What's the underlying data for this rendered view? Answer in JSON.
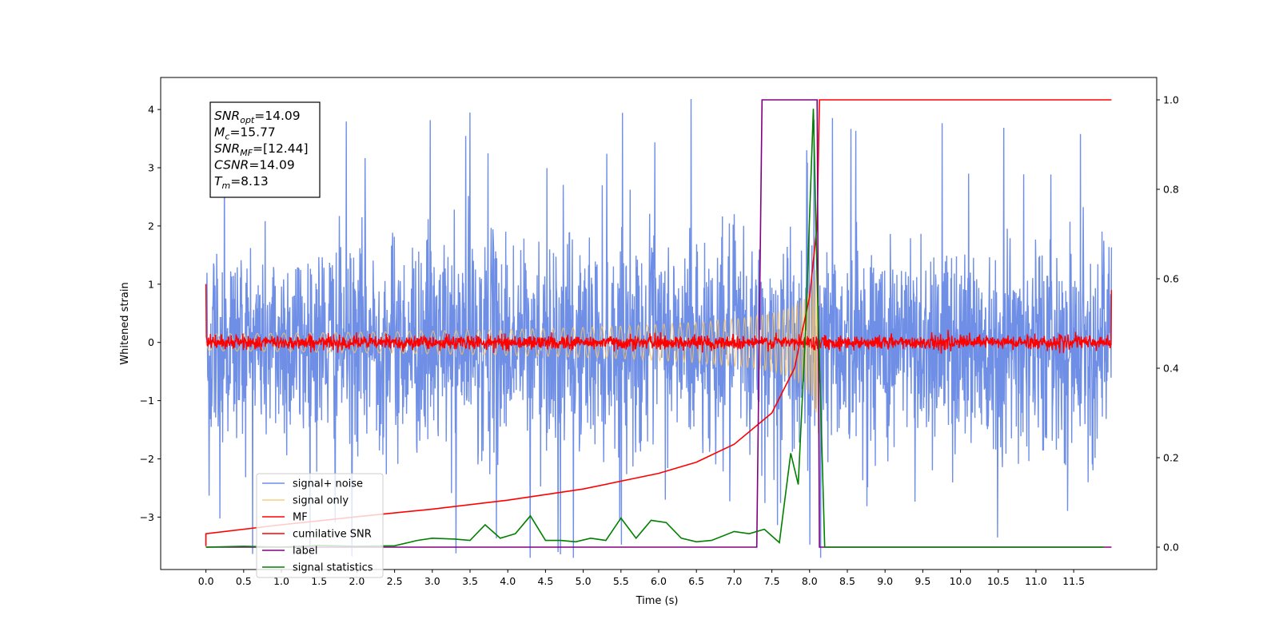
{
  "chart_data": {
    "type": "line",
    "xlabel": "Time (s)",
    "ylabel": "Whitened strain",
    "xlim": [
      -0.6,
      12.6
    ],
    "ylim_left": [
      -3.9,
      4.55
    ],
    "ylim_right": [
      -0.05,
      1.05
    ],
    "x_ticks": [
      "0.0",
      "0.5",
      "1.0",
      "1.5",
      "2.0",
      "2.5",
      "3.0",
      "3.5",
      "4.0",
      "4.5",
      "5.0",
      "5.5",
      "6.0",
      "6.5",
      "7.0",
      "7.5",
      "8.0",
      "8.5",
      "9.0",
      "9.5",
      "10.0",
      "10.5",
      "11.0",
      "11.5"
    ],
    "y_ticks_left": [
      "4",
      "3",
      "2",
      "1",
      "0",
      "−1",
      "−2",
      "−3"
    ],
    "y_ticks_right": [
      "1.0",
      "0.8",
      "0.6",
      "0.4",
      "0.2",
      "0.0"
    ],
    "info_box": [
      {
        "base": "SNR",
        "sub": "opt",
        "rest": "=14.09"
      },
      {
        "base": "M",
        "sub": "c",
        "rest": "=15.77"
      },
      {
        "base": "SNR",
        "sub": "MF",
        "rest": "=[12.44]"
      },
      {
        "base": "CSNR",
        "sub": "",
        "rest": "=14.09"
      },
      {
        "base": "T",
        "sub": "m",
        "rest": "=8.13"
      }
    ],
    "series": [
      {
        "name": "signal+ noise",
        "color": "#6f8ee6",
        "axis": "left",
        "x_range": [
          0,
          12
        ],
        "amplitude_std": 0.9,
        "peak_min": -3.6,
        "peak_max": 4.18
      },
      {
        "name": "signal only",
        "color": "#f5c46b",
        "axis": "left",
        "x_range": [
          0,
          8.13
        ],
        "envelope_end": 3.3
      },
      {
        "name": "MF",
        "color": "#ff0000",
        "axis": "left",
        "x_range": [
          0,
          12
        ],
        "amplitude_std": 0.06,
        "start": 1.0,
        "end": 0.9
      },
      {
        "name": "cumilative SNR",
        "color": "#ff0000",
        "axis": "right",
        "x": [
          0.0,
          1.0,
          2.0,
          3.0,
          4.0,
          5.0,
          6.0,
          6.5,
          7.0,
          7.5,
          7.8,
          8.0,
          8.1,
          8.13,
          9.0,
          10.0,
          11.0,
          12.0
        ],
        "y": [
          0.03,
          0.05,
          0.068,
          0.085,
          0.105,
          0.13,
          0.165,
          0.19,
          0.23,
          0.3,
          0.4,
          0.56,
          0.72,
          1.0,
          1.0,
          1.0,
          1.0,
          1.0
        ]
      },
      {
        "name": "label",
        "color": "#800080",
        "axis": "right",
        "x": [
          0.0,
          7.3,
          7.37,
          8.1,
          8.13,
          12.0
        ],
        "y": [
          0.0,
          0.0,
          1.0,
          1.0,
          0.0,
          0.0
        ]
      },
      {
        "name": "signal statistics",
        "color": "#008000",
        "axis": "right",
        "x": [
          0.0,
          0.5,
          1.0,
          1.5,
          2.0,
          2.5,
          2.8,
          3.0,
          3.3,
          3.5,
          3.7,
          3.9,
          4.1,
          4.3,
          4.5,
          4.7,
          4.9,
          5.1,
          5.3,
          5.5,
          5.7,
          5.9,
          6.1,
          6.3,
          6.5,
          6.7,
          7.0,
          7.2,
          7.4,
          7.6,
          7.75,
          7.85,
          7.95,
          8.05,
          8.1,
          8.2,
          8.5,
          9.0,
          10.0,
          11.0,
          11.9
        ],
        "y": [
          0.0,
          0.002,
          0.0,
          0.004,
          0.002,
          0.003,
          0.015,
          0.02,
          0.018,
          0.015,
          0.05,
          0.02,
          0.03,
          0.07,
          0.015,
          0.015,
          0.012,
          0.02,
          0.015,
          0.065,
          0.02,
          0.06,
          0.055,
          0.02,
          0.012,
          0.015,
          0.035,
          0.03,
          0.04,
          0.01,
          0.21,
          0.14,
          0.5,
          0.98,
          0.6,
          0.0,
          0.0,
          0.0,
          0.0,
          0.0,
          0.0
        ]
      }
    ],
    "legend_placement": "lower-left",
    "grid": false
  }
}
